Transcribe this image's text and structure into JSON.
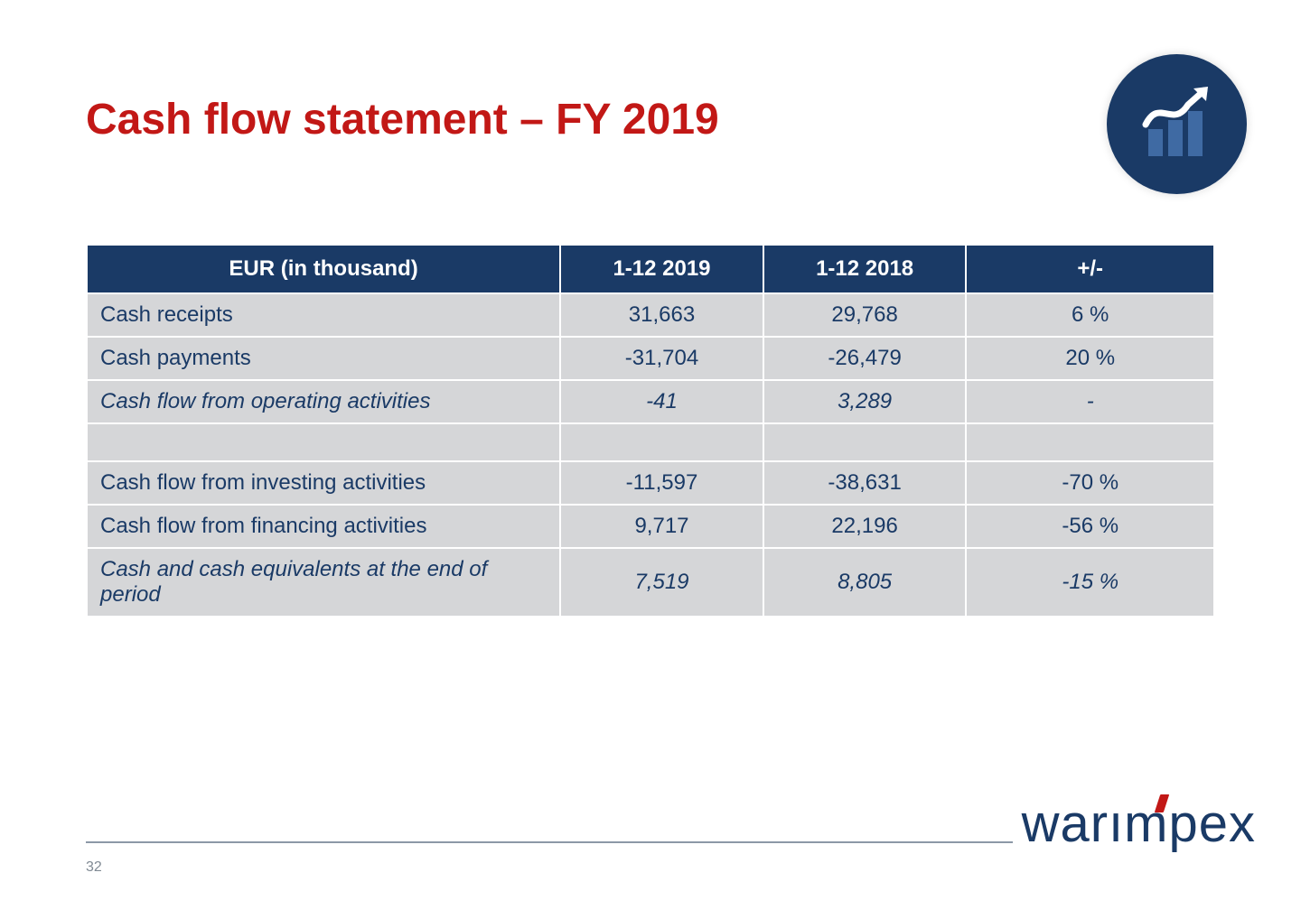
{
  "title": "Cash flow statement – FY 2019",
  "pageNumber": "32",
  "brand": "warımpex",
  "colors": {
    "titleColor": "#c21816",
    "headerBg": "#1a3a66",
    "headerText": "#ffffff",
    "cellBg": "#d5d6d8",
    "cellText": "#1a3a66",
    "iconBg": "#1a3a66",
    "iconBars": "#3f6aa3",
    "iconLine": "#ffffff",
    "footerLine": "#8c98a7",
    "brandAccent": "#c21816",
    "pageBg": "#ffffff"
  },
  "table": {
    "columns": [
      "EUR (in thousand)",
      "1-12 2019",
      "1-12 2018",
      "+/-"
    ],
    "rows": [
      {
        "label": "Cash receipts",
        "c1": "31,663",
        "c2": "29,768",
        "c3": "6 %",
        "type": "normal"
      },
      {
        "label": "Cash payments",
        "c1": "-31,704",
        "c2": "-26,479",
        "c3": "20 %",
        "type": "normal"
      },
      {
        "label": "Cash flow from operating activities",
        "c1": "-41",
        "c2": "3,289",
        "c3": "-",
        "type": "italic"
      },
      {
        "label": "",
        "c1": "",
        "c2": "",
        "c3": "",
        "type": "spacer"
      },
      {
        "label": "Cash flow from investing activities",
        "c1": "-11,597",
        "c2": "-38,631",
        "c3": "-70 %",
        "type": "normal"
      },
      {
        "label": "Cash flow from financing activities",
        "c1": "9,717",
        "c2": "22,196",
        "c3": "-56 %",
        "type": "normal"
      },
      {
        "label": "Cash and cash equivalents at the end of period",
        "c1": "7,519",
        "c2": "8,805",
        "c3": "-15 %",
        "type": "italic"
      }
    ]
  }
}
